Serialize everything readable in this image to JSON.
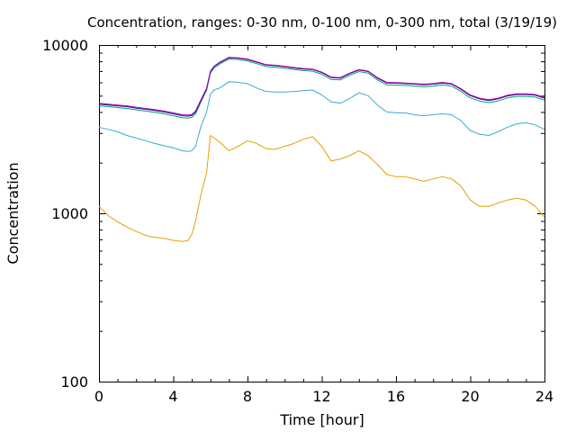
{
  "chart_data": {
    "type": "line",
    "title": "Concentration, ranges: 0-30 nm, 0-100 nm, 0-300 nm, total (3/19/19)",
    "xlabel": "Time [hour]",
    "ylabel": "Concentration",
    "xlim": [
      0,
      24
    ],
    "ylim": [
      100,
      10000
    ],
    "yscale": "log",
    "xticks": [
      0,
      4,
      8,
      12,
      16,
      20,
      24
    ],
    "xtick_labels": [
      "0",
      "4",
      "8",
      "12",
      "16",
      "20",
      "24"
    ],
    "yticks": [
      100,
      1000,
      10000
    ],
    "ytick_labels": [
      "100",
      "1000",
      "10000"
    ],
    "grid": false,
    "legend": "none",
    "x": [
      0,
      0.5,
      1,
      1.5,
      2,
      2.5,
      3,
      3.5,
      4,
      4.5,
      4.8,
      5,
      5.2,
      5.5,
      5.8,
      6,
      6.2,
      6.5,
      7,
      7.5,
      8,
      8.5,
      9,
      9.5,
      10,
      10.5,
      11,
      11.5,
      12,
      12.5,
      13,
      13.5,
      14,
      14.5,
      15,
      15.5,
      16,
      16.5,
      17,
      17.5,
      18,
      18.5,
      19,
      19.5,
      20,
      20.5,
      21,
      21.5,
      22,
      22.5,
      23,
      23.5,
      24
    ],
    "series": [
      {
        "color": "#e6a000",
        "values": [
          1100,
          970,
          890,
          830,
          780,
          740,
          720,
          710,
          690,
          680,
          690,
          750,
          900,
          1300,
          1750,
          2900,
          2800,
          2650,
          2350,
          2500,
          2700,
          2600,
          2420,
          2400,
          2500,
          2600,
          2750,
          2850,
          2500,
          2050,
          2100,
          2200,
          2350,
          2200,
          1950,
          1700,
          1650,
          1650,
          1600,
          1550,
          1600,
          1650,
          1600,
          1450,
          1200,
          1100,
          1100,
          1150,
          1200,
          1230,
          1200,
          1100,
          950
        ]
      },
      {
        "color": "#3aa9d8",
        "values": [
          3250,
          3150,
          3050,
          2900,
          2800,
          2700,
          2600,
          2520,
          2450,
          2350,
          2330,
          2350,
          2500,
          3300,
          4000,
          5100,
          5400,
          5550,
          6050,
          6000,
          5900,
          5550,
          5300,
          5250,
          5250,
          5300,
          5350,
          5400,
          5050,
          4600,
          4500,
          4800,
          5200,
          5000,
          4400,
          4000,
          3950,
          3950,
          3850,
          3800,
          3850,
          3900,
          3850,
          3550,
          3100,
          2950,
          2900,
          3050,
          3250,
          3400,
          3450,
          3350,
          3150
        ]
      },
      {
        "color": "#009e73",
        "values": [
          4350,
          4300,
          4250,
          4200,
          4120,
          4050,
          3980,
          3900,
          3800,
          3700,
          3680,
          3720,
          3900,
          4600,
          5400,
          6800,
          7300,
          7700,
          8250,
          8200,
          8050,
          7750,
          7450,
          7380,
          7280,
          7150,
          7050,
          7000,
          6700,
          6250,
          6200,
          6600,
          6950,
          6800,
          6200,
          5800,
          5780,
          5750,
          5700,
          5650,
          5700,
          5800,
          5700,
          5300,
          4850,
          4650,
          4550,
          4650,
          4850,
          4950,
          4950,
          4900,
          4700
        ]
      },
      {
        "color": "#1a1a8c",
        "values": [
          4450,
          4400,
          4350,
          4300,
          4220,
          4150,
          4080,
          4000,
          3900,
          3800,
          3780,
          3820,
          4000,
          4700,
          5500,
          6950,
          7450,
          7850,
          8400,
          8350,
          8200,
          7900,
          7600,
          7530,
          7430,
          7300,
          7200,
          7150,
          6850,
          6400,
          6350,
          6750,
          7100,
          6950,
          6350,
          5950,
          5930,
          5900,
          5850,
          5800,
          5850,
          5950,
          5850,
          5450,
          5000,
          4780,
          4680,
          4780,
          4980,
          5080,
          5080,
          5030,
          4830
        ]
      },
      {
        "color": "#b000b0",
        "values": [
          4500,
          4450,
          4400,
          4350,
          4270,
          4200,
          4130,
          4050,
          3950,
          3850,
          3830,
          3870,
          4050,
          4750,
          5550,
          7000,
          7500,
          7900,
          8450,
          8400,
          8250,
          7950,
          7650,
          7580,
          7480,
          7350,
          7250,
          7200,
          6900,
          6450,
          6400,
          6800,
          7150,
          7000,
          6400,
          6000,
          5980,
          5950,
          5900,
          5850,
          5900,
          6000,
          5900,
          5500,
          5050,
          4830,
          4730,
          4830,
          5030,
          5130,
          5130,
          5080,
          4880
        ]
      }
    ]
  }
}
